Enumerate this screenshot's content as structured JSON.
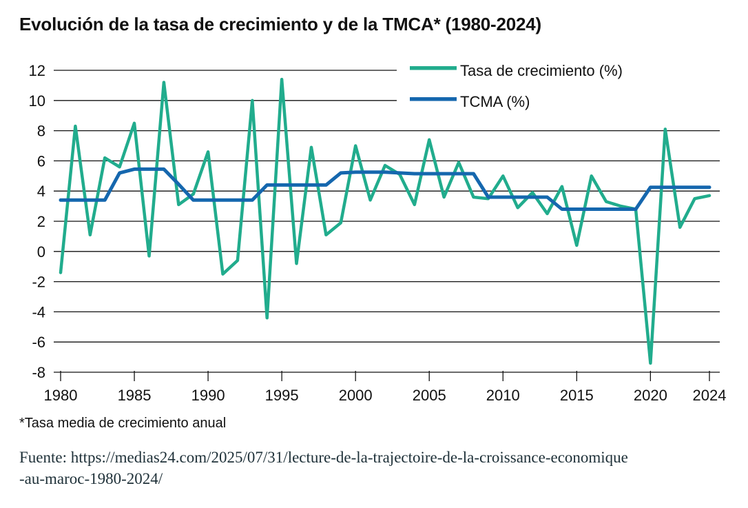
{
  "page": {
    "title": "Evolución de la tasa de crecimiento y de la TMCA* (1980-2024)",
    "footnote": "*Tasa media de crecimiento anual",
    "source_line1": "Fuente: https://medias24.com/2025/07/31/lecture-de-la-trajectoire-de-la-croissance-economique",
    "source_line2": "-au-maroc-1980-2024/"
  },
  "colors": {
    "growth_line": "#21AC8D",
    "tcma_line": "#1567AE",
    "grid_line": "#111111",
    "text": "#111111",
    "source_text": "#1E3038",
    "background": "#FFFFFF"
  },
  "chart_data": {
    "type": "line",
    "title": "Evolución de la tasa de crecimiento y de la TMCA* (1980-2024)",
    "xlabel": "",
    "ylabel": "",
    "ylim": [
      -8,
      12
    ],
    "yticks": [
      12,
      10,
      8,
      6,
      4,
      2,
      0,
      -2,
      -4,
      -6,
      -8
    ],
    "xticks": [
      1980,
      1985,
      1990,
      1995,
      2000,
      2005,
      2010,
      2015,
      2020,
      2024
    ],
    "grid": true,
    "legend_position": "top-right",
    "x_years": [
      1980,
      1981,
      1982,
      1983,
      1984,
      1985,
      1986,
      1987,
      1988,
      1989,
      1990,
      1991,
      1992,
      1993,
      1994,
      1995,
      1996,
      1997,
      1998,
      1999,
      2000,
      2001,
      2002,
      2003,
      2004,
      2005,
      2006,
      2007,
      2008,
      2009,
      2010,
      2011,
      2012,
      2013,
      2014,
      2015,
      2016,
      2017,
      2018,
      2019,
      2020,
      2021,
      2022,
      2023,
      2024
    ],
    "series": [
      {
        "name": "Tasa de crecimiento (%)",
        "color": "#21AC8D",
        "values": [
          -1.4,
          8.3,
          1.1,
          6.2,
          5.6,
          8.5,
          -0.3,
          11.2,
          3.1,
          3.8,
          6.6,
          -1.5,
          -0.6,
          10.0,
          -4.4,
          11.4,
          -0.8,
          6.9,
          1.1,
          1.9,
          7.0,
          3.4,
          5.7,
          5.1,
          3.1,
          7.4,
          3.6,
          5.9,
          3.6,
          3.5,
          5.0,
          2.9,
          3.9,
          2.5,
          4.3,
          0.4,
          5.0,
          3.3,
          3.0,
          2.8,
          -7.4,
          8.1,
          1.6,
          3.5,
          3.7
        ]
      },
      {
        "name": "TCMA (%)",
        "color": "#1567AE",
        "values": [
          3.4,
          3.4,
          3.4,
          3.4,
          5.2,
          5.45,
          5.45,
          5.45,
          4.45,
          3.4,
          3.4,
          3.4,
          3.4,
          3.4,
          4.4,
          4.4,
          4.4,
          4.4,
          4.4,
          5.2,
          5.25,
          5.25,
          5.25,
          5.2,
          5.15,
          5.15,
          5.15,
          5.15,
          5.15,
          3.6,
          3.6,
          3.6,
          3.6,
          3.6,
          2.8,
          2.8,
          2.8,
          2.8,
          2.8,
          2.8,
          4.25,
          4.25,
          4.25,
          4.25,
          4.25
        ]
      }
    ]
  }
}
